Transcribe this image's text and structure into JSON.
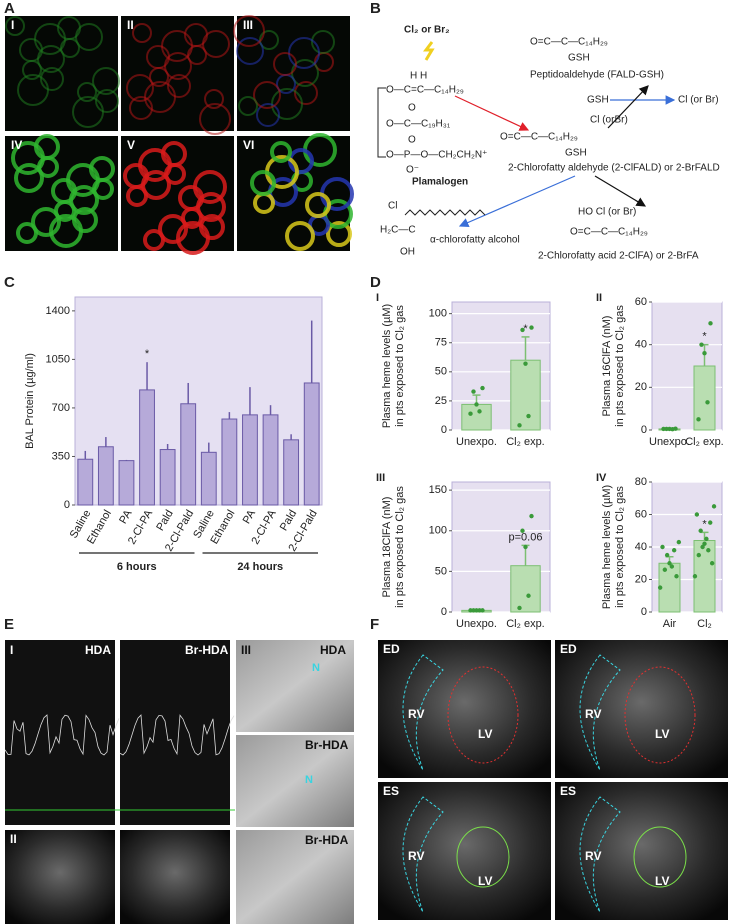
{
  "panel_labels": [
    "A",
    "B",
    "C",
    "D",
    "E",
    "F"
  ],
  "panel_a": {
    "labels": [
      "I",
      "II",
      "III",
      "IV",
      "V",
      "VI"
    ]
  },
  "panel_b": {
    "texts": [
      "Cl₂ or Br₂",
      "H   H",
      "O—C=C—C₁₄H₂₉",
      "O",
      "O—C—C₁₉H₃₁",
      "O",
      "O—P—O—CH₂CH₂N⁺",
      "O⁻",
      "Plamalogen",
      "O=C—C—C₁₄H₂₉",
      "GSH",
      "Peptidoaldehyde (FALD-GSH)",
      "GSH",
      "Cl (or Br)",
      "Cl (orBr)",
      "O=C—C—C₁₄H₂₉",
      "GSH",
      "2-Chlorofatty aldehyde (2-ClFALD) or 2-BrFALD",
      "Cl",
      "H₂C—C",
      "OH",
      "α-chlorofatty alcohol",
      "HO   Cl (or Br)",
      "O=C—C—C₁₄H₂₉",
      "2-Chlorofatty acid 2-ClFA) or 2-BrFA"
    ]
  },
  "chart_data": [
    {
      "type": "bar",
      "ylabel": [
        "BAL Protein (µg/ml)"
      ],
      "categories": [
        "Saline",
        "Ethanol",
        "PA",
        "2-Cl-PA",
        "Pald",
        "2-Cl-Pald",
        "Saline",
        "Ethanol",
        "PA",
        "2-Cl-PA",
        "Pald",
        "2-Cl-Pald"
      ],
      "values": [
        330,
        420,
        320,
        830,
        400,
        730,
        380,
        620,
        650,
        650,
        470,
        880
      ],
      "errors": [
        60,
        70,
        5,
        200,
        40,
        150,
        70,
        50,
        200,
        70,
        40,
        450
      ],
      "annotations": [
        null,
        null,
        null,
        "*",
        null,
        null,
        null,
        null,
        null,
        null,
        null,
        null
      ],
      "group_labels": [
        "6 hours",
        "24 hours"
      ],
      "ylim": [
        0,
        1500
      ],
      "yticks": [
        0,
        350,
        700,
        1050,
        1400
      ],
      "grid": false,
      "color": "#b6aad9",
      "edge_color": "#6a5aa6",
      "background": "#e5e0f2"
    },
    {
      "type": "bar",
      "title": "I",
      "ylabel": [
        "Plasma heme levels (µM)",
        "in pts exposed to Cl₂ gas"
      ],
      "categories": [
        "Unexpo.",
        "Cl₂ exp."
      ],
      "values": [
        22,
        60
      ],
      "errors": [
        8,
        20
      ],
      "points": [
        [
          36,
          33,
          22,
          16,
          14
        ],
        [
          88,
          86,
          57,
          12,
          4
        ]
      ],
      "annotations": [
        null,
        "*"
      ],
      "ylim": [
        0,
        110
      ],
      "yticks": [
        0,
        25,
        50,
        75,
        100
      ],
      "grid": true,
      "color": "#b9deb1",
      "edge_color": "#7cbf72",
      "point_color": "#3a9a3a",
      "background": "#e6e0f0"
    },
    {
      "type": "bar",
      "title": "II",
      "ylabel": [
        "Plasma 16ClFA (nM)",
        "in pts exposed to Cl₂ gas"
      ],
      "categories": [
        "Unexpo.",
        "Cl₂ exp."
      ],
      "values": [
        0.5,
        30
      ],
      "errors": [
        0.2,
        10
      ],
      "points": [
        [
          0.6,
          0.5,
          0.5,
          0.4,
          0.5
        ],
        [
          50,
          40,
          36,
          13,
          5
        ]
      ],
      "annotations": [
        null,
        "*"
      ],
      "ylim": [
        0,
        60
      ],
      "yticks": [
        0,
        20,
        40,
        60
      ],
      "grid": true,
      "color": "#b9deb1",
      "edge_color": "#7cbf72",
      "point_color": "#3a9a3a",
      "background": "#e6e0f0"
    },
    {
      "type": "bar",
      "title": "III",
      "ylabel": [
        "Plasma 18ClFA (nM)",
        "in pts exposed to Cl₂ gas"
      ],
      "categories": [
        "Unexpo.",
        "Cl₂ exp."
      ],
      "values": [
        2,
        57
      ],
      "errors": [
        0.5,
        25
      ],
      "points": [
        [
          2,
          2,
          2,
          2,
          2
        ],
        [
          118,
          100,
          80,
          20,
          5
        ]
      ],
      "annotations": [
        null,
        "p=0.06"
      ],
      "ylim": [
        0,
        160
      ],
      "yticks": [
        0,
        50,
        100,
        150
      ],
      "grid": true,
      "color": "#b9deb1",
      "edge_color": "#7cbf72",
      "point_color": "#3a9a3a",
      "background": "#e6e0f0"
    },
    {
      "type": "bar",
      "title": "IV",
      "ylabel": [
        "Plasma heme levels (µM)",
        "in pts exposed to Cl₂ gas"
      ],
      "categories": [
        "Air",
        "Cl₂"
      ],
      "values": [
        30,
        44
      ],
      "errors": [
        4,
        5
      ],
      "points": [
        [
          43,
          40,
          38,
          35,
          30,
          28,
          26,
          22,
          15
        ],
        [
          65,
          60,
          55,
          50,
          45,
          42,
          40,
          38,
          35,
          30,
          22
        ]
      ],
      "annotations": [
        null,
        "*"
      ],
      "ylim": [
        0,
        80
      ],
      "yticks": [
        0,
        20,
        40,
        60,
        80
      ],
      "grid": true,
      "color": "#b9deb1",
      "edge_color": "#7cbf72",
      "point_color": "#3a9a3a",
      "background": "#e6e0f0"
    }
  ],
  "panel_e": {
    "labels": [
      "I",
      "HDA",
      "Br-HDA",
      "II",
      "III",
      "HDA",
      "N",
      "Br-HDA",
      "N",
      "Br-HDA"
    ]
  },
  "panel_f": {
    "labels": [
      "ED",
      "ED",
      "ES",
      "ES"
    ],
    "rv": [
      "RV",
      "RV",
      "RV",
      "RV"
    ],
    "lv": [
      "LV",
      "LV",
      "LV",
      "LV"
    ]
  }
}
